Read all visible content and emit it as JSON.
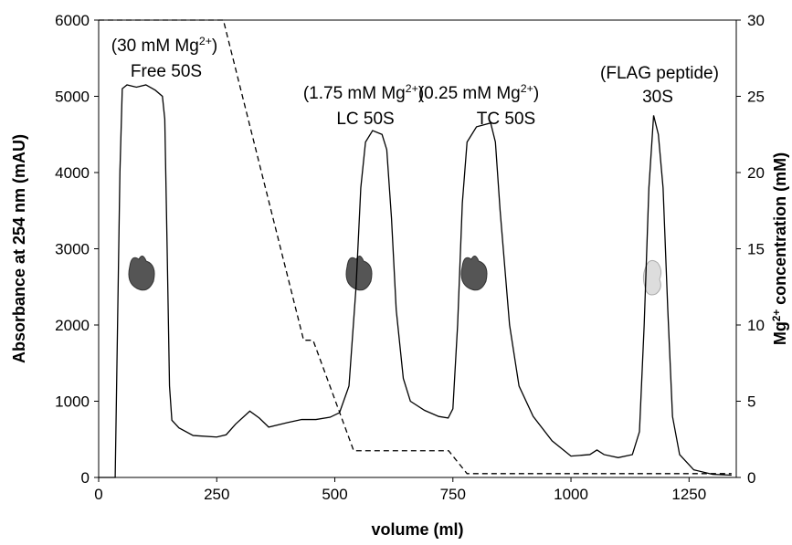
{
  "chart_data": {
    "type": "line",
    "xlabel": "volume (ml)",
    "ylabel": "Absorbance at 254 nm (mAU)",
    "y2label": [
      "Mg",
      "2+",
      " concentration (mM)"
    ],
    "xlim": [
      0,
      1350
    ],
    "xticks": [
      0,
      250,
      500,
      750,
      1000,
      1250
    ],
    "ylim": [
      0,
      6000
    ],
    "yticks": [
      0,
      1000,
      2000,
      3000,
      4000,
      5000,
      6000
    ],
    "y2lim": [
      0,
      30
    ],
    "y2ticks": [
      0,
      5,
      10,
      15,
      20,
      25,
      30
    ],
    "annotations": [
      {
        "line1": [
          "(30 mM Mg",
          "2+",
          ")"
        ],
        "line2": "Free 50S"
      },
      {
        "line1": [
          "(1.75 mM Mg",
          "2+",
          ")"
        ],
        "line2": "LC 50S"
      },
      {
        "line1": [
          "(0.25 mM Mg",
          "2+",
          ")"
        ],
        "line2": "TC 50S"
      },
      {
        "line1": "(FLAG peptide)",
        "line2": "30S"
      }
    ],
    "series": [
      {
        "color": "#000000",
        "x": [
          0,
          25,
          35,
          45,
          50,
          60,
          80,
          100,
          120,
          135,
          140,
          145,
          150,
          155,
          170,
          200,
          250,
          270,
          290,
          320,
          340,
          360,
          400,
          430,
          460,
          490,
          510,
          530,
          545,
          555,
          565,
          580,
          600,
          610,
          620,
          630,
          645,
          660,
          690,
          720,
          740,
          750,
          760,
          770,
          780,
          800,
          830,
          840,
          850,
          870,
          890,
          920,
          960,
          1000,
          1040,
          1055,
          1070,
          1100,
          1130,
          1145,
          1155,
          1165,
          1175,
          1185,
          1195,
          1205,
          1215,
          1230,
          1260,
          1300,
          1340
        ],
        "values": [
          0,
          0,
          0,
          4000,
          5100,
          5150,
          5120,
          5150,
          5080,
          5000,
          4700,
          3000,
          1200,
          750,
          650,
          550,
          530,
          560,
          700,
          870,
          780,
          660,
          720,
          760,
          760,
          790,
          850,
          1200,
          2500,
          3800,
          4400,
          4550,
          4500,
          4300,
          3400,
          2200,
          1300,
          1000,
          880,
          800,
          780,
          900,
          2000,
          3600,
          4400,
          4600,
          4650,
          4400,
          3500,
          2000,
          1200,
          800,
          480,
          280,
          300,
          360,
          300,
          260,
          300,
          600,
          2000,
          3800,
          4750,
          4500,
          3800,
          2200,
          800,
          300,
          100,
          40,
          30
        ]
      },
      {
        "color": "#000000",
        "axis": "y2",
        "dash": true,
        "x": [
          0,
          264,
          434,
          454,
          540,
          741,
          780,
          1340
        ],
        "values": [
          30,
          30,
          9,
          9,
          1.75,
          1.75,
          0.25,
          0.25
        ]
      }
    ]
  }
}
